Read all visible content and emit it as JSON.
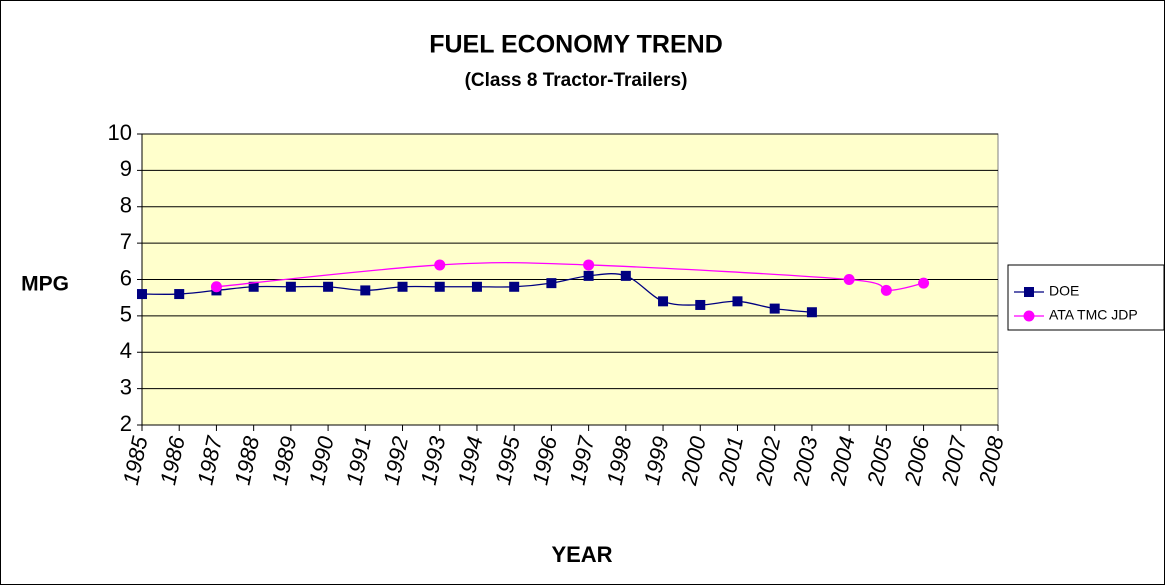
{
  "chart_data": {
    "type": "line",
    "title": "FUEL ECONOMY TREND",
    "subtitle": "(Class 8 Tractor-Trailers)",
    "x_label": "YEAR",
    "y_label": "MPG",
    "xlim": [
      1985,
      2008
    ],
    "xticks": [
      1985,
      1986,
      1987,
      1988,
      1989,
      1990,
      1991,
      1992,
      1993,
      1994,
      1995,
      1996,
      1997,
      1998,
      1999,
      2000,
      2001,
      2002,
      2003,
      2004,
      2005,
      2006,
      2007,
      2008
    ],
    "ylim": [
      2,
      10
    ],
    "yticks": [
      2,
      3,
      4,
      5,
      6,
      7,
      8,
      9,
      10
    ],
    "grid": true,
    "legend": "right",
    "series": [
      {
        "name": "DOE",
        "color": "#000080",
        "marker": "square",
        "x": [
          1985,
          1986,
          1987,
          1988,
          1989,
          1990,
          1991,
          1992,
          1993,
          1994,
          1995,
          1996,
          1997,
          1998,
          1999,
          2000,
          2001,
          2002,
          2003
        ],
        "values": [
          5.6,
          5.6,
          5.7,
          5.8,
          5.8,
          5.8,
          5.7,
          5.8,
          5.8,
          5.8,
          5.8,
          5.9,
          6.1,
          6.1,
          5.4,
          5.3,
          5.4,
          5.2,
          5.1
        ]
      },
      {
        "name": "ATA TMC JDP",
        "color": "#FF00FF",
        "marker": "circle",
        "x": [
          1987,
          1993,
          1997,
          2004,
          2005,
          2006
        ],
        "values": [
          5.8,
          6.4,
          6.4,
          6.0,
          5.7,
          5.9
        ]
      }
    ]
  }
}
